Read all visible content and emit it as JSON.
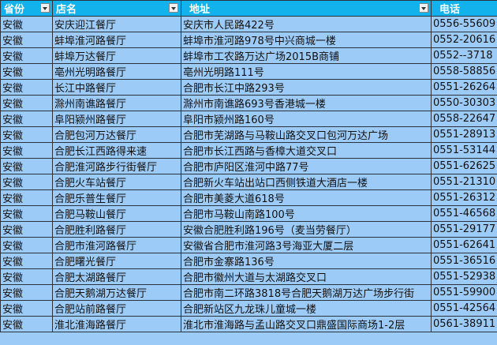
{
  "columns": [
    "省份",
    "店名",
    "地址",
    "电话"
  ],
  "rows": [
    [
      "安徽",
      "安庆迎江餐厅",
      "安庆市人民路422号",
      "0556-55609"
    ],
    [
      "安徽",
      "蚌埠淮河路餐厅",
      "蚌埠市淮河路978号中兴商城一楼",
      "0552-20616"
    ],
    [
      "安徽",
      "蚌埠万达餐厅",
      "蚌埠市工农路万达广场2015B商铺",
      "0552--3718"
    ],
    [
      "安徽",
      "亳州光明路餐厅",
      "亳州光明路111号",
      "0558-58856"
    ],
    [
      "安徽",
      "长江中路餐厅",
      "合肥市长江中路293号",
      "0551-26264"
    ],
    [
      "安徽",
      "滁州南谯路餐厅",
      "滁州市南谯路693号香港城一楼",
      "0550-30303"
    ],
    [
      "安徽",
      "阜阳颍州路餐厅",
      "阜阳市颍州路160号",
      "0558-22647"
    ],
    [
      "安徽",
      "合肥包河万达餐厅",
      "合肥市芜湖路与马鞍山路交叉口包河万达广场",
      "0551-28913"
    ],
    [
      "安徽",
      "合肥长江西路得来速",
      "合肥市长江西路与香樟大道交叉口",
      "0551-53144"
    ],
    [
      "安徽",
      "合肥淮河路步行街餐厅",
      "合肥市庐阳区淮河中路77号",
      "0551-62625"
    ],
    [
      "安徽",
      "合肥火车站餐厅",
      "合肥新火车站出站口西侧铁道大酒店一楼",
      "0551-21310"
    ],
    [
      "安徽",
      "合肥乐普生餐厅",
      "合肥市美菱大道618号",
      "0551-26312"
    ],
    [
      "安徽",
      "合肥马鞍山餐厅",
      "合肥市马鞍山南路100号",
      "0551-46568"
    ],
    [
      "安徽",
      "合肥胜利路餐厅",
      "安徽合肥胜利路196号（麦当劳餐厅）",
      "0551-29177"
    ],
    [
      "安徽",
      "合肥市淮河路餐厅",
      "安徽省合肥市淮河路3号海亚大厦二层",
      "0551-62641"
    ],
    [
      "安徽",
      "合肥曙光餐厅",
      "合肥市金寨路136号",
      "0551-36516"
    ],
    [
      "安徽",
      "合肥太湖路餐厅",
      "合肥市徽州大道与太湖路交叉口",
      "0551-52938"
    ],
    [
      "安徽",
      "合肥天鹅湖万达餐厅",
      "合肥市南二环路3818号合肥天鹅湖万达广场步行街",
      "0551-59900"
    ],
    [
      "安徽",
      "合肥站前路餐厅",
      "合肥新站区九龙珠儿童城一楼",
      "0551-42564"
    ],
    [
      "安徽",
      "淮北淮海路餐厅",
      "淮北市淮海路与孟山路交叉口鼎盛国际商场1-2层",
      "0561-38911"
    ]
  ],
  "colors": {
    "header_bg": "#12b2ec",
    "cell_bg": "#9dcbf7",
    "border": "#2a3440"
  }
}
